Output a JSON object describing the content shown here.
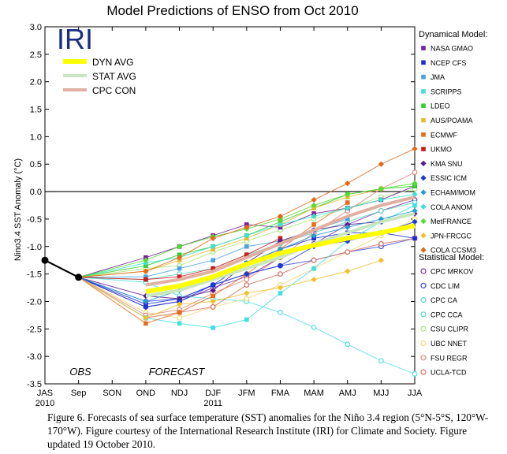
{
  "chart_data": {
    "type": "line",
    "title": "Model Predictions of ENSO from Oct 2010",
    "logo": "IRI",
    "ylabel": "Nino3.4 SST Anomaly (°C)",
    "xlabel": "",
    "ylim": [
      -3.5,
      3.0
    ],
    "yticks": [
      "3.0",
      "2.5",
      "2.0",
      "1.5",
      "1.0",
      "0.5",
      "0.0",
      "-0.5",
      "-1.0",
      "-1.5",
      "-2.0",
      "-2.5",
      "-3.0",
      "-3.5"
    ],
    "categories": [
      "JAS",
      "Sep",
      "SON",
      "OND",
      "NDJ",
      "DJF",
      "JFM",
      "FMA",
      "MAM",
      "AMJ",
      "MJJ",
      "JJA"
    ],
    "category_sublabels": {
      "JAS": "2010",
      "DJF": "2011"
    },
    "obs_label": "OBS",
    "forecast_label": "FORECAST",
    "zero_line": true,
    "grid": false,
    "obs": {
      "x": [
        "JAS",
        "Sep"
      ],
      "values": [
        -1.25,
        -1.56
      ],
      "color": "#000000"
    },
    "legend_left": [
      {
        "name": "DYN AVG",
        "color": "#ffff00"
      },
      {
        "name": "STAT AVG",
        "color": "#c8e6c0"
      },
      {
        "name": "CPC CON",
        "color": "#e0b0a0"
      }
    ],
    "dynamical_heading": "Dynamical Model:",
    "statistical_heading": "Statistical Model:",
    "dynamical_models": [
      {
        "name": "NASA GMAO",
        "color": "#7a1f9e",
        "marker": "square",
        "values": [
          -1.2,
          -1.0,
          -0.8,
          -0.6,
          -0.65,
          -0.4,
          -0.3,
          -0.15,
          0.1
        ]
      },
      {
        "name": "NCEP CFS",
        "color": "#1a2ed6",
        "marker": "square",
        "values": [
          -2.05,
          -1.95,
          -1.7,
          -1.3,
          -1.05,
          -0.85,
          -0.75,
          -0.75,
          -0.85
        ]
      },
      {
        "name": "JMA",
        "color": "#4aa3e0",
        "marker": "square",
        "values": [
          -1.55,
          -1.4,
          -1.25,
          -1.0,
          -0.9,
          -0.7,
          -0.5,
          null,
          null
        ]
      },
      {
        "name": "SCRIPPS",
        "color": "#40e0e0",
        "marker": "square",
        "values": [
          -2.3,
          -2.4,
          -2.48,
          -2.33,
          -1.85,
          -1.4,
          -0.9,
          -0.55,
          -0.25
        ]
      },
      {
        "name": "LDEO",
        "color": "#33cc33",
        "marker": "square",
        "values": [
          -1.35,
          -1.15,
          -1.0,
          -0.8,
          -0.55,
          -0.3,
          -0.05,
          0.05,
          0.1
        ]
      },
      {
        "name": "AUS/POAMA",
        "color": "#e8b830",
        "marker": "square",
        "values": [
          -1.45,
          -1.25,
          -1.05,
          -0.85,
          -0.6,
          -0.3,
          -0.1,
          0.05,
          null
        ]
      },
      {
        "name": "ECMWF",
        "color": "#e86a1a",
        "marker": "square",
        "values": [
          -2.4,
          -2.2,
          -1.9,
          -1.5,
          -1.05,
          -0.6,
          -0.2,
          null,
          null
        ]
      },
      {
        "name": "UKMO",
        "color": "#d01a1a",
        "marker": "square",
        "values": [
          -1.6,
          -1.55,
          -1.4,
          -1.15,
          -0.85,
          null,
          null,
          null,
          null
        ]
      },
      {
        "name": "KMA SNU",
        "color": "#5a1a8a",
        "marker": "diamond",
        "values": [
          -1.9,
          -1.95,
          -1.8,
          -1.3,
          -0.9,
          -0.7,
          -0.6,
          -0.55,
          -0.4
        ]
      },
      {
        "name": "ESSIC ICM",
        "color": "#1a3ad0",
        "marker": "diamond",
        "values": [
          -2.1,
          -2.0,
          -1.7,
          -1.5,
          -1.35,
          -1.0,
          -0.9,
          -0.75,
          -0.55
        ]
      },
      {
        "name": "ECHAM/MOM",
        "color": "#2a9ad0",
        "marker": "diamond",
        "values": [
          -2.0,
          -1.8,
          -1.55,
          -1.3,
          -1.05,
          -0.8,
          -0.65,
          -0.5,
          -0.35
        ]
      },
      {
        "name": "COLA ANOM",
        "color": "#40e0d0",
        "marker": "diamond",
        "values": [
          -1.3,
          -1.2,
          -1.0,
          -0.8,
          -0.6,
          -0.45,
          -0.3,
          -0.15,
          -0.05
        ]
      },
      {
        "name": "MetFRANCE",
        "color": "#55dd33",
        "marker": "diamond",
        "values": [
          -1.25,
          -1.0,
          -0.82,
          -0.68,
          -0.5,
          -0.25,
          -0.05,
          0.05,
          0.15
        ]
      },
      {
        "name": "JPN-FRCGC",
        "color": "#f0c030",
        "marker": "diamond",
        "values": [
          -2.3,
          -2.05,
          -2.0,
          -1.85,
          -1.75,
          -1.6,
          -1.45,
          -1.25,
          null
        ]
      },
      {
        "name": "COLA CCSM3",
        "color": "#e06a1a",
        "marker": "diamond",
        "values": [
          -1.45,
          -1.2,
          -0.85,
          -0.65,
          -0.45,
          -0.15,
          0.15,
          0.5,
          0.78
        ]
      }
    ],
    "statistical_models": [
      {
        "name": "CPC MRKOV",
        "color": "#7a2fb0",
        "marker": "circle",
        "values": [
          -2.1,
          -2.0,
          -1.75,
          -1.55,
          -1.2,
          -0.95,
          -0.6,
          -0.35,
          -0.15
        ]
      },
      {
        "name": "CDC LIM",
        "color": "#3a4ad8",
        "marker": "circle",
        "values": [
          -2.0,
          -1.95,
          -1.7,
          -1.5,
          -1.35,
          -1.25,
          -1.1,
          -1.0,
          -0.85
        ]
      },
      {
        "name": "CPC CA",
        "color": "#50e0e8",
        "marker": "circle",
        "values": [
          -1.65,
          -1.9,
          -1.95,
          -2.0,
          -2.2,
          -2.47,
          -2.78,
          -3.08,
          -3.32
        ]
      },
      {
        "name": "CPC CCA",
        "color": "#60d8c0",
        "marker": "circle",
        "values": [
          -1.6,
          -1.5,
          -1.4,
          -1.15,
          -0.95,
          -0.75,
          -0.55,
          -0.35,
          -0.2
        ]
      },
      {
        "name": "CSU CLIPR",
        "color": "#a8e878",
        "marker": "circle",
        "values": [
          -1.4,
          -1.35,
          -1.1,
          -0.9,
          -0.7,
          -0.5,
          -0.3,
          -0.1,
          0.05
        ]
      },
      {
        "name": "UBC NNET",
        "color": "#f0d878",
        "marker": "circle",
        "values": [
          -2.2,
          -2.3,
          -2.1,
          -1.95,
          -1.7,
          -1.4,
          -1.1,
          -0.8,
          -0.5
        ]
      },
      {
        "name": "FSU REGR",
        "color": "#e08878",
        "marker": "circle",
        "values": [
          -2.25,
          -2.15,
          -1.85,
          -1.6,
          -1.2,
          -0.75,
          -0.35,
          0.05,
          0.35
        ]
      },
      {
        "name": "UCLA-TCD",
        "color": "#d07060",
        "marker": "circle",
        "values": [
          -2.3,
          -2.2,
          -2.1,
          -1.7,
          -1.5,
          -1.25,
          -1.1,
          -0.95,
          -0.85
        ]
      }
    ],
    "averages": [
      {
        "name": "STAT AVG",
        "color": "#c8e6c0",
        "values": [
          -1.9,
          -1.8,
          -1.6,
          -1.4,
          -1.2,
          -0.95,
          -0.75,
          -0.55,
          -0.4
        ]
      },
      {
        "name": "CPC CON",
        "color": "#e0b0a0",
        "values": [
          -1.7,
          -1.6,
          -1.45,
          -1.2,
          -0.95,
          -0.7,
          -0.45,
          -0.25,
          -0.1
        ]
      },
      {
        "name": "DYN AVG",
        "color": "#ffff00",
        "values": [
          -1.82,
          -1.72,
          -1.55,
          -1.32,
          -1.12,
          -0.98,
          -0.85,
          -0.75,
          -0.62
        ]
      }
    ]
  },
  "caption": "Figure 6. Forecasts of sea surface temperature (SST) anomalies for the Niño 3.4 region (5°N-5°S, 120°W-170°W).  Figure courtesy of the International Research Institute (IRI) for Climate and Society.  Figure updated 19 October 2010."
}
